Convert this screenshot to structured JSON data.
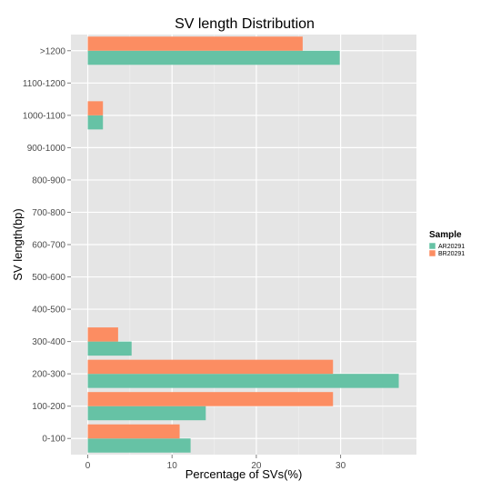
{
  "chart_data": {
    "type": "bar",
    "orientation": "horizontal",
    "title": "SV length Distribution",
    "xlabel": "Percentage of SVs(%)",
    "ylabel": "SV length(bp)",
    "categories": [
      "0-100",
      "100-200",
      "200-300",
      "300-400",
      "400-500",
      "500-600",
      "600-700",
      "700-800",
      "800-900",
      "900-1000",
      "1000-1100",
      "1100-1200",
      ">1200"
    ],
    "series": [
      {
        "name": "AR20291",
        "color": "#66c2a5",
        "values": [
          12.2,
          14.0,
          36.9,
          5.2,
          0,
          0,
          0,
          0,
          0,
          0,
          1.8,
          0,
          29.9
        ]
      },
      {
        "name": "BR20291",
        "color": "#fc8d62",
        "values": [
          10.9,
          29.1,
          29.1,
          3.6,
          0,
          0,
          0,
          0,
          0,
          0,
          1.8,
          0,
          25.5
        ]
      }
    ],
    "xlim": [
      -2,
      39
    ],
    "xticks": [
      0,
      10,
      20,
      30
    ],
    "grid": true,
    "background": "#e5e5e5",
    "legend": {
      "title": "Sample",
      "position": "right"
    }
  }
}
